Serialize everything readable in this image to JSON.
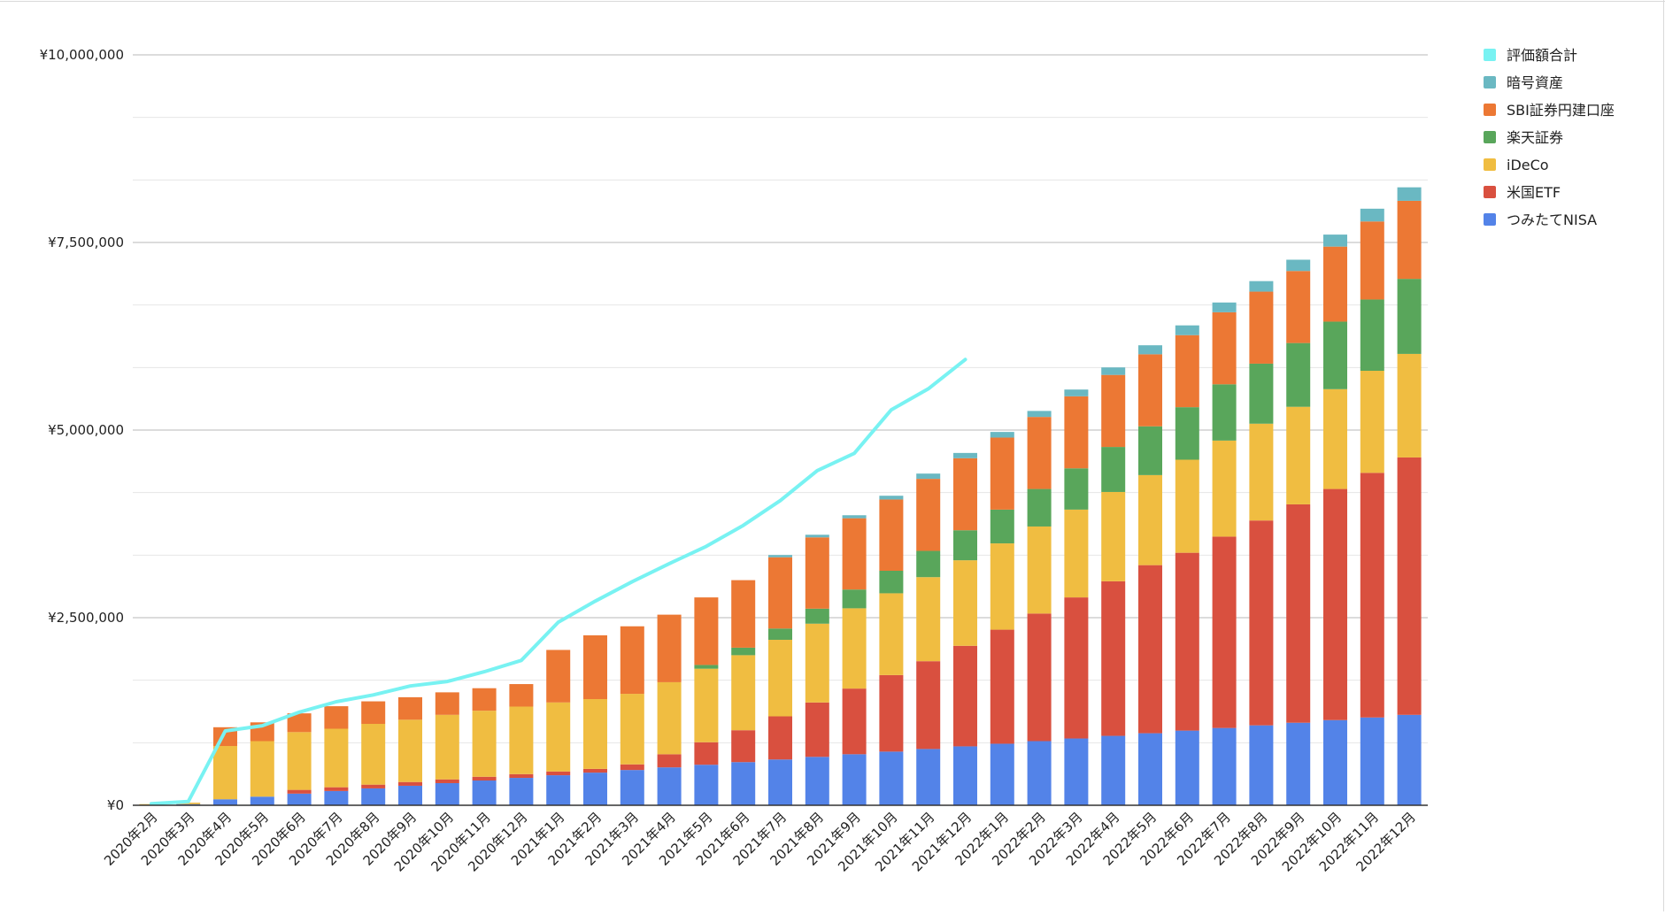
{
  "chart_data": {
    "type": "bar",
    "stacked": true,
    "categories": [
      "2020年2月",
      "2020年3月",
      "2020年4月",
      "2020年5月",
      "2020年6月",
      "2020年7月",
      "2020年8月",
      "2020年9月",
      "2020年10月",
      "2020年11月",
      "2020年12月",
      "2021年1月",
      "2021年2月",
      "2021年3月",
      "2021年4月",
      "2021年5月",
      "2021年6月",
      "2021年7月",
      "2021年8月",
      "2021年9月",
      "2021年10月",
      "2021年11月",
      "2021年12月",
      "2022年1月",
      "2022年2月",
      "2022年3月",
      "2022年4月",
      "2022年5月",
      "2022年6月",
      "2022年7月",
      "2022年8月",
      "2022年9月",
      "2022年10月",
      "2022年11月",
      "2022年12月"
    ],
    "series": [
      {
        "name": "つみたてNISA",
        "color": "#5383e8",
        "values": [
          5000,
          15000,
          80000,
          115000,
          155000,
          190000,
          225000,
          260000,
          295000,
          330000,
          365000,
          400000,
          435000,
          470000,
          505000,
          540000,
          575000,
          610000,
          645000,
          680000,
          715000,
          750000,
          785000,
          820000,
          855000,
          890000,
          925000,
          960000,
          995000,
          1030000,
          1065000,
          1100000,
          1135000,
          1170000,
          1205000
        ]
      },
      {
        "name": "米国ETF",
        "color": "#d9503f",
        "values": [
          0,
          0,
          0,
          0,
          50000,
          50000,
          50000,
          50000,
          50000,
          50000,
          50000,
          50000,
          50000,
          75000,
          175000,
          300000,
          425000,
          575000,
          725000,
          875000,
          1020000,
          1170000,
          1340000,
          1520000,
          1700000,
          1880000,
          2060000,
          2240000,
          2370000,
          2550000,
          2730000,
          2910000,
          3080000,
          3260000,
          3430000
        ]
      },
      {
        "name": "iDeCo",
        "color": "#f0bd41",
        "values": [
          10000,
          20000,
          710000,
          740000,
          770000,
          780000,
          810000,
          830000,
          860000,
          880000,
          900000,
          920000,
          930000,
          940000,
          960000,
          980000,
          1000000,
          1020000,
          1050000,
          1070000,
          1090000,
          1120000,
          1140000,
          1150000,
          1160000,
          1170000,
          1190000,
          1200000,
          1240000,
          1280000,
          1290000,
          1300000,
          1330000,
          1360000,
          1380000
        ]
      },
      {
        "name": "楽天証券",
        "color": "#59a65b",
        "values": [
          0,
          0,
          0,
          0,
          0,
          0,
          0,
          0,
          0,
          0,
          0,
          0,
          0,
          0,
          0,
          50000,
          100000,
          150000,
          200000,
          250000,
          300000,
          350000,
          400000,
          450000,
          500000,
          550000,
          600000,
          650000,
          700000,
          750000,
          800000,
          850000,
          900000,
          950000,
          1000000
        ]
      },
      {
        "name": "SBI証券円建口座",
        "color": "#ec7834",
        "values": [
          0,
          0,
          250000,
          250000,
          250000,
          300000,
          300000,
          300000,
          300000,
          300000,
          300000,
          700000,
          850000,
          900000,
          900000,
          900000,
          900000,
          950000,
          950000,
          950000,
          950000,
          960000,
          960000,
          960000,
          960000,
          960000,
          960000,
          960000,
          960000,
          960000,
          960000,
          960000,
          1000000,
          1040000,
          1040000
        ]
      },
      {
        "name": "暗号資産",
        "color": "#6ab8c2",
        "values": [
          0,
          0,
          0,
          0,
          0,
          0,
          0,
          0,
          0,
          0,
          0,
          0,
          0,
          0,
          0,
          0,
          0,
          30000,
          35000,
          40000,
          50000,
          70000,
          70000,
          75000,
          80000,
          90000,
          100000,
          120000,
          130000,
          130000,
          140000,
          150000,
          160000,
          170000,
          180000
        ]
      }
    ],
    "line_series": {
      "name": "評価額合計",
      "color": "#78f2f2",
      "values": [
        20000,
        50000,
        990000,
        1060000,
        1240000,
        1380000,
        1470000,
        1590000,
        1650000,
        1780000,
        1930000,
        2440000,
        2720000,
        2980000,
        3220000,
        3450000,
        3730000,
        4060000,
        4460000,
        4690000,
        5270000,
        5550000,
        5940000,
        null,
        null,
        null,
        null,
        null,
        null,
        null,
        null,
        null,
        null,
        null,
        null
      ]
    },
    "ylim": [
      0,
      10000000
    ],
    "y_ticks": [
      {
        "value": 0,
        "label": "¥0"
      },
      {
        "value": 2500000,
        "label": "¥2,500,000"
      },
      {
        "value": 5000000,
        "label": "¥5,000,000"
      },
      {
        "value": 7500000,
        "label": "¥7,500,000"
      },
      {
        "value": 10000000,
        "label": "¥10,000,000"
      }
    ],
    "minor_grid_step": 833333,
    "grid": true,
    "legend_position": "right"
  }
}
